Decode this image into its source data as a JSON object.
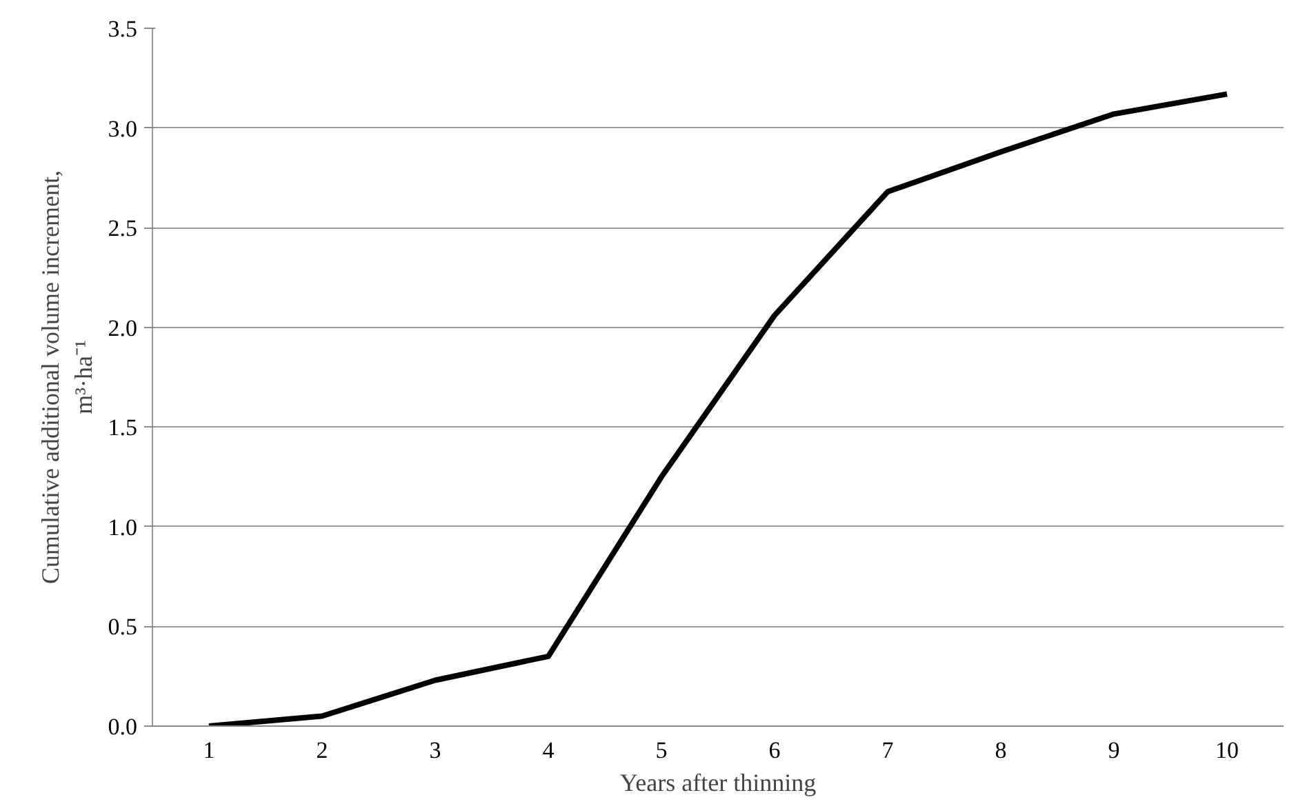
{
  "chart_data": {
    "type": "line",
    "xlabel": "Years after thinning",
    "ylabel": "Cumulative additional volume increment,\nm³·ha⁻¹",
    "categories": [
      "1",
      "2",
      "3",
      "4",
      "5",
      "6",
      "7",
      "8",
      "9",
      "10"
    ],
    "series": [
      {
        "color": "#000000",
        "values": [
          0.0,
          0.05,
          0.23,
          0.35,
          1.25,
          2.06,
          2.68,
          2.88,
          3.07,
          3.17
        ]
      }
    ],
    "ylim": [
      0,
      3.5
    ],
    "yticks": [
      {
        "value": 0,
        "label": "0.0"
      },
      0.5,
      {
        "value": 1,
        "label": "1.0"
      },
      1.5,
      {
        "value": 2,
        "label": "2.0"
      },
      2.5,
      {
        "value": 3,
        "label": "3.0"
      },
      3.5
    ],
    "grid": "y",
    "marker": "none",
    "line_style": "solid"
  }
}
